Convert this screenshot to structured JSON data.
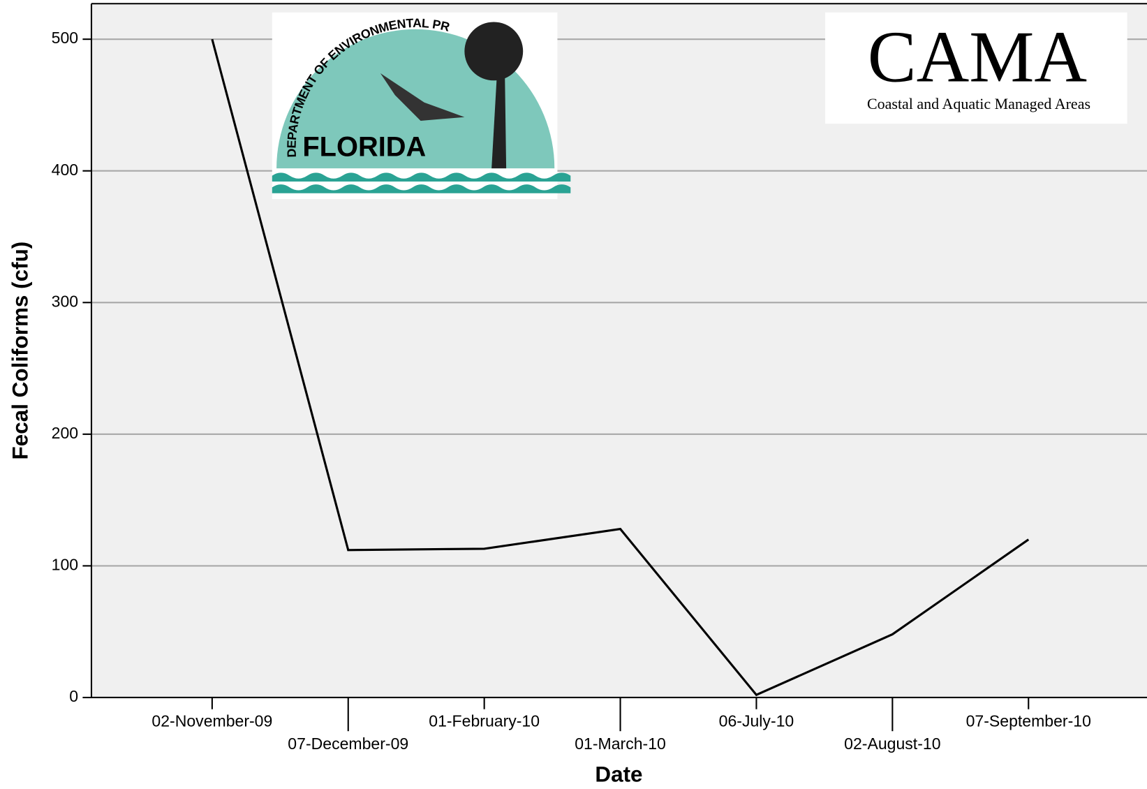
{
  "chart_data": {
    "type": "line",
    "x_label": "Date",
    "y_label": "Fecal Coliforms (cfu)",
    "categories": [
      "02-November-09",
      "07-December-09",
      "01-February-10",
      "01-March-10",
      "06-July-10",
      "02-August-10",
      "07-September-10"
    ],
    "values": [
      500,
      112,
      113,
      128,
      2,
      48,
      120
    ],
    "color": "#000000",
    "ylim": [
      0,
      527
    ],
    "yticks": [
      0,
      100,
      200,
      300,
      400,
      500
    ],
    "grid": true
  },
  "logos": {
    "florida_arc": "DEPARTMENT OF ENVIRONMENTAL PROTECTION",
    "florida_name": "FLORIDA",
    "cama_name": "CAMA",
    "cama_sub": "Coastal and Aquatic Managed Areas"
  }
}
